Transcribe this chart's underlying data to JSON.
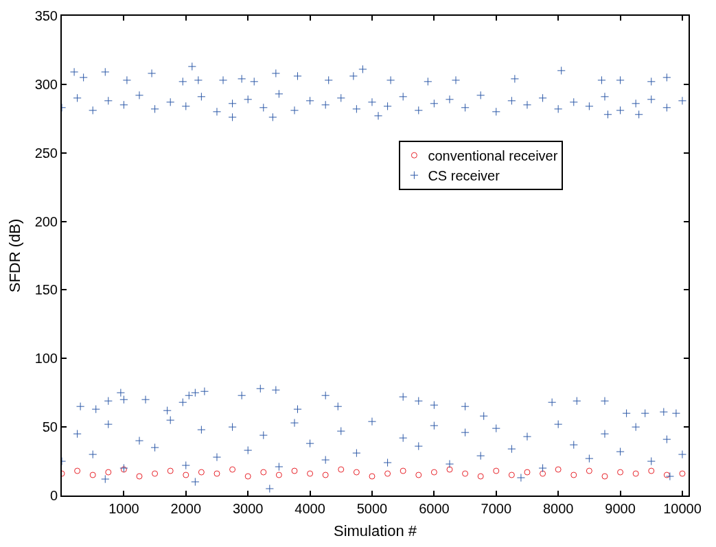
{
  "chart_data": {
    "type": "scatter",
    "xlabel": "Simulation #",
    "ylabel": "SFDR (dB)",
    "xlim": [
      0,
      10100
    ],
    "xticks": [
      1000,
      2000,
      3000,
      4000,
      5000,
      6000,
      7000,
      8000,
      9000,
      10000
    ],
    "ylim": [
      0,
      350
    ],
    "yticks": [
      0,
      50,
      100,
      150,
      200,
      250,
      300,
      350
    ],
    "legend": "top right",
    "series": [
      {
        "name": "conventional receiver",
        "color": "#e8232a",
        "marker": "circle",
        "x": [
          0,
          250,
          500,
          750,
          1000,
          1250,
          1500,
          1750,
          2000,
          2250,
          2500,
          2750,
          3000,
          3250,
          3500,
          3750,
          4000,
          4250,
          4500,
          4750,
          5000,
          5250,
          5500,
          5750,
          6000,
          6250,
          6500,
          6750,
          7000,
          7250,
          7500,
          7750,
          8000,
          8250,
          8500,
          8750,
          9000,
          9250,
          9500,
          9750,
          10000
        ],
        "values": [
          16,
          18,
          15,
          17,
          19,
          14,
          16,
          18,
          15,
          17,
          16,
          19,
          14,
          17,
          15,
          18,
          16,
          15,
          19,
          17,
          14,
          16,
          18,
          15,
          17,
          19,
          16,
          14,
          18,
          15,
          17,
          16,
          19,
          15,
          18,
          14,
          17,
          16,
          18,
          15,
          16
        ]
      },
      {
        "name": "CS receiver",
        "color": "#2e5aa8",
        "marker": "cross",
        "x": [
          0,
          250,
          500,
          750,
          1000,
          1250,
          1500,
          1750,
          2000,
          2250,
          2500,
          2750,
          3000,
          3250,
          3500,
          3750,
          4000,
          4250,
          4500,
          4750,
          5000,
          5250,
          5500,
          5750,
          6000,
          6250,
          6500,
          6750,
          7000,
          7250,
          7500,
          7750,
          8000,
          8250,
          8500,
          8750,
          9000,
          9250,
          9500,
          9750,
          10000,
          200,
          350,
          700,
          1050,
          1450,
          1950,
          2100,
          2200,
          2600,
          2900,
          3100,
          3450,
          3800,
          4300,
          4850,
          4700,
          5300,
          5900,
          6350,
          7300,
          8050,
          8700,
          9000,
          9500,
          9750,
          2750,
          3400,
          5100,
          8800,
          9300,
          0,
          250,
          500,
          750,
          1000,
          1250,
          1500,
          1750,
          2000,
          2250,
          2500,
          2750,
          3000,
          3250,
          3500,
          3750,
          4000,
          4250,
          4500,
          4750,
          5000,
          5250,
          5500,
          5750,
          6000,
          6250,
          6500,
          6750,
          7000,
          7250,
          7500,
          7750,
          8000,
          8250,
          8500,
          8750,
          9000,
          9250,
          9500,
          9750,
          10000,
          300,
          550,
          750,
          950,
          1000,
          1350,
          1700,
          1950,
          2050,
          2150,
          2300,
          2900,
          3200,
          3450,
          3800,
          4250,
          4450,
          5500,
          5750,
          6000,
          6500,
          6800,
          7900,
          8300,
          8750,
          9100,
          9400,
          9700,
          9900,
          700,
          2150,
          3350,
          7400,
          9800
        ],
        "values": [
          283,
          290,
          281,
          288,
          285,
          292,
          282,
          287,
          284,
          291,
          280,
          286,
          289,
          283,
          293,
          281,
          288,
          285,
          290,
          282,
          287,
          284,
          291,
          281,
          286,
          289,
          283,
          292,
          280,
          288,
          285,
          290,
          282,
          287,
          284,
          291,
          281,
          286,
          289,
          283,
          288,
          309,
          305,
          309,
          303,
          308,
          302,
          313,
          303,
          303,
          304,
          302,
          308,
          306,
          303,
          311,
          306,
          303,
          302,
          303,
          304,
          310,
          303,
          303,
          302,
          305,
          276,
          276,
          277,
          278,
          278,
          25,
          45,
          30,
          52,
          20,
          40,
          35,
          55,
          22,
          48,
          28,
          50,
          33,
          44,
          21,
          53,
          38,
          26,
          47,
          31,
          54,
          24,
          42,
          36,
          51,
          23,
          46,
          29,
          49,
          34,
          43,
          20,
          52,
          37,
          27,
          45,
          32,
          50,
          25,
          41,
          30,
          65,
          63,
          69,
          75,
          70,
          70,
          62,
          68,
          73,
          75,
          76,
          73,
          78,
          77,
          63,
          73,
          65,
          72,
          69,
          66,
          65,
          58,
          68,
          69,
          69,
          60,
          60,
          61,
          60,
          12,
          10,
          5,
          13,
          14
        ]
      }
    ]
  }
}
